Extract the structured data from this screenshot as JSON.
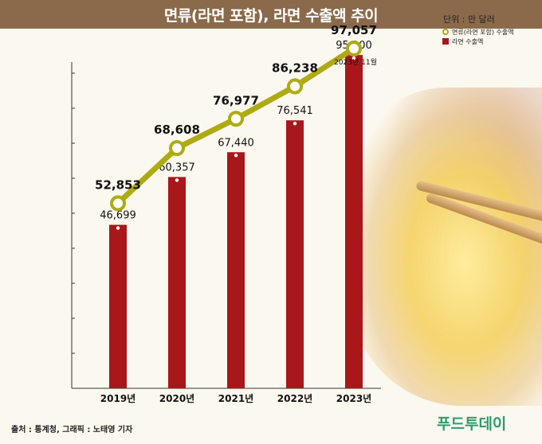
{
  "title": "면류(라면 포함), 라면 수출액 추이",
  "unit": "단위 : 만 달러",
  "legend": {
    "line_label": "면류(라면 포함) 수출액",
    "bar_label": "라면 수출액"
  },
  "source": "출처 : 통계청, 그래픽 : 노태영 기자",
  "logo": "푸드투데이",
  "chart_data": {
    "type": "bar",
    "categories": [
      "2019년",
      "2020년",
      "2021년",
      "2022년",
      "2023년"
    ],
    "series": [
      {
        "name": "면류(라면 포함) 수출액",
        "type": "line",
        "values": [
          52853,
          68608,
          76977,
          86238,
          97057
        ],
        "color": "#aeaa12"
      },
      {
        "name": "라면 수출액",
        "type": "bar",
        "values": [
          46699,
          60357,
          67440,
          76541,
          95200
        ],
        "color": "#a8171a"
      }
    ],
    "value_labels": {
      "line": [
        "52,853",
        "68,608",
        "76,977",
        "86,238",
        "97,057"
      ],
      "bar": [
        "46,699",
        "60,357",
        "67,440",
        "76,541",
        "95,200"
      ]
    },
    "annotation": "2023년 11월",
    "ylim": [
      0,
      100000
    ],
    "grid": false
  }
}
